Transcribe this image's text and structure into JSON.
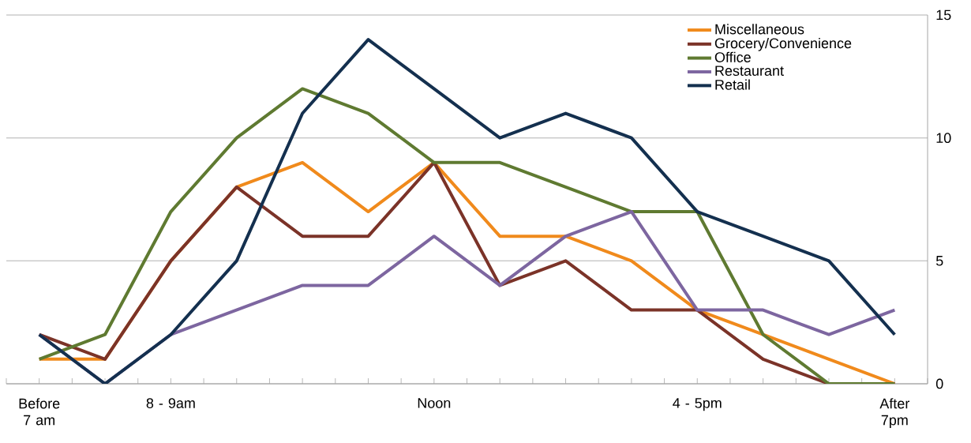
{
  "chart_data": {
    "type": "line",
    "categories": [
      "Before 7 am",
      null,
      "8 - 9am",
      null,
      null,
      null,
      "Noon",
      null,
      null,
      null,
      "4 - 5pm",
      null,
      null,
      "After 7pm"
    ],
    "series": [
      {
        "name": "Miscellaneous",
        "color": "#f08a1c",
        "values": [
          1,
          1,
          5,
          8,
          9,
          7,
          9,
          6,
          6,
          5,
          3,
          2,
          1,
          0
        ]
      },
      {
        "name": "Grocery/Convenience",
        "color": "#7b3328",
        "values": [
          2,
          1,
          5,
          8,
          6,
          6,
          9,
          4,
          5,
          3,
          3,
          1,
          0,
          0
        ]
      },
      {
        "name": "Office",
        "color": "#5f7a31",
        "values": [
          1,
          2,
          7,
          10,
          12,
          11,
          9,
          9,
          8,
          7,
          7,
          2,
          0,
          0
        ]
      },
      {
        "name": "Restaurant",
        "color": "#7d66a0",
        "values": [
          2,
          0,
          2,
          3,
          4,
          4,
          6,
          4,
          6,
          7,
          3,
          3,
          2,
          3
        ]
      },
      {
        "name": "Retail",
        "color": "#14304f",
        "values": [
          2,
          0,
          2,
          5,
          11,
          14,
          12,
          10,
          11,
          10,
          7,
          6,
          5,
          2
        ]
      }
    ],
    "ylim": [
      0,
      15
    ],
    "yticks": [
      0,
      5,
      10,
      15
    ],
    "grid": "y",
    "legend": "top right",
    "marker": "none",
    "line_style": "solid"
  }
}
